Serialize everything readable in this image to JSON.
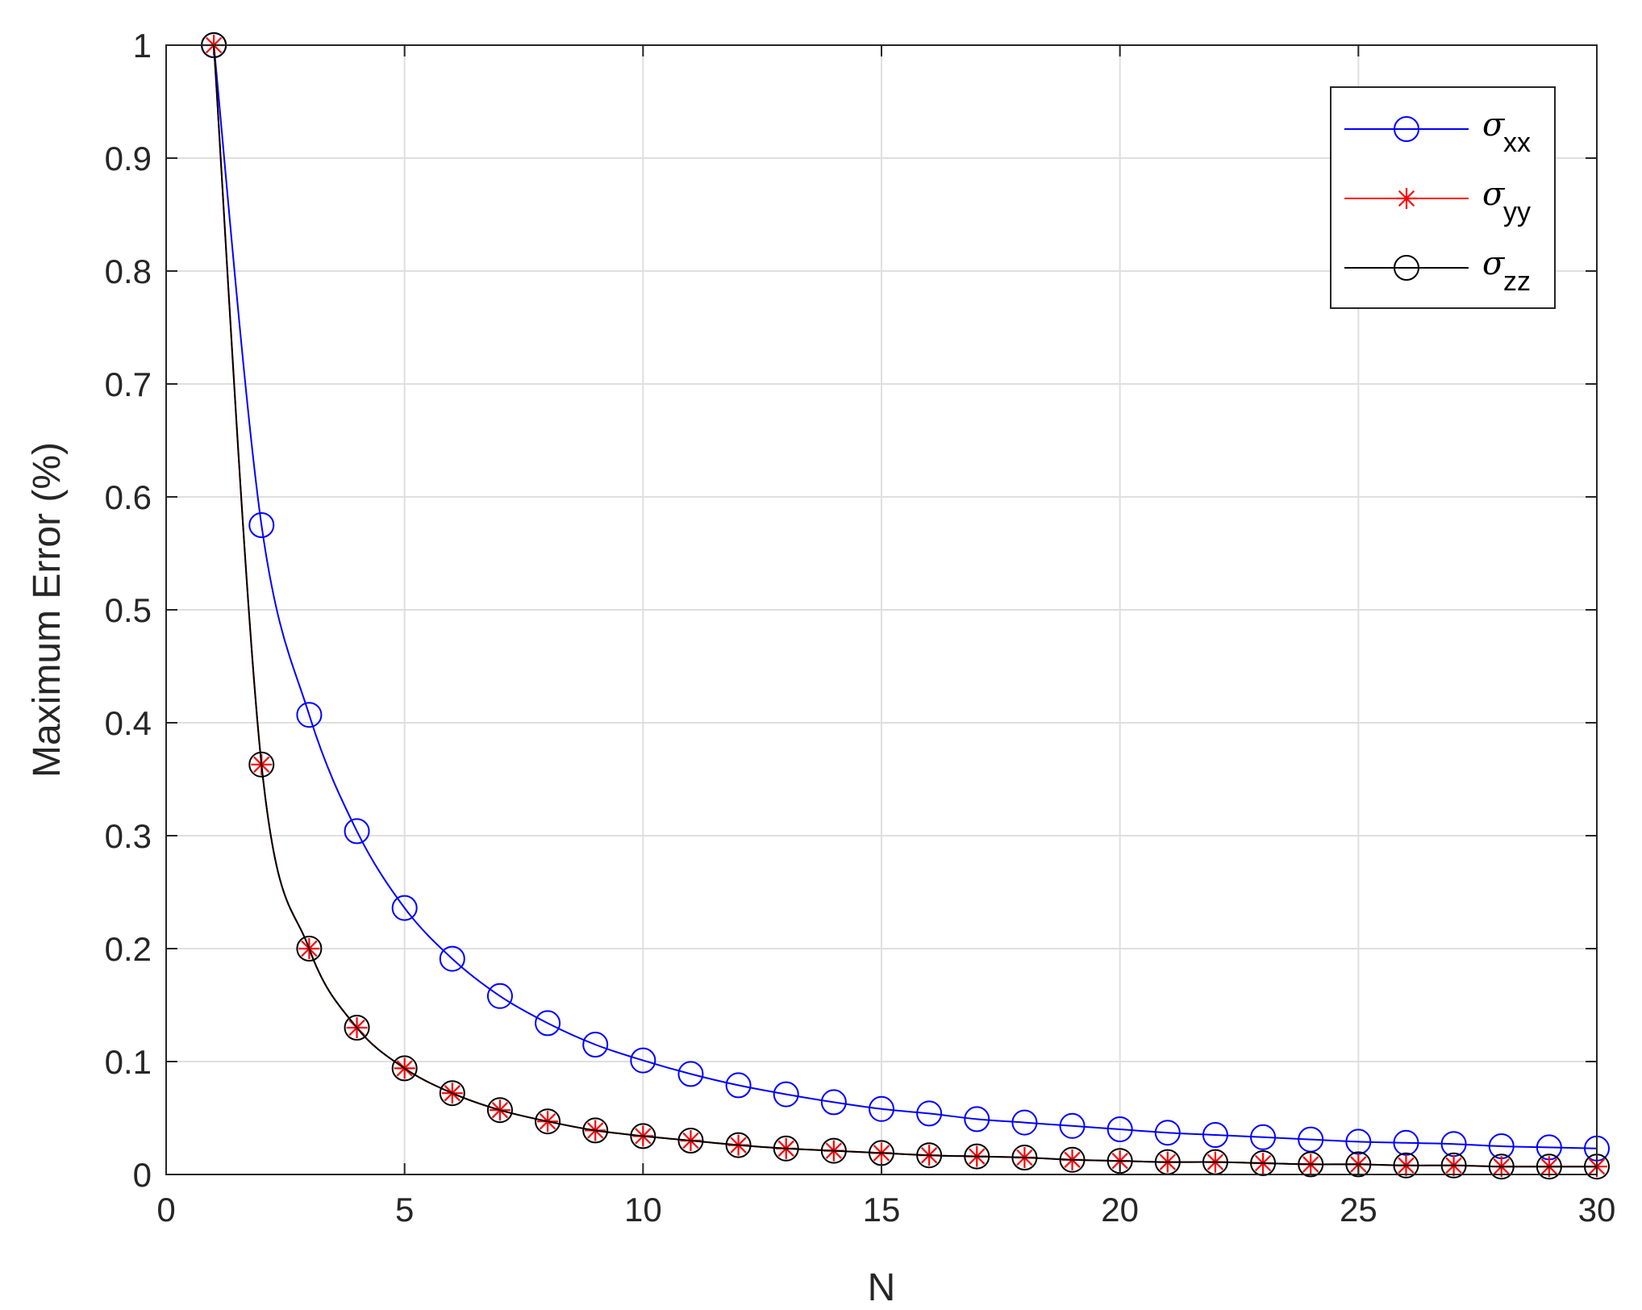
{
  "chart_data": {
    "type": "line",
    "xlabel": "N",
    "ylabel": "Maximum Error (%)",
    "xlim": [
      0,
      30
    ],
    "ylim": [
      0,
      1
    ],
    "xticks": [
      "0",
      "5",
      "10",
      "15",
      "20",
      "25",
      "30"
    ],
    "yticks": [
      "0",
      "0.1",
      "0.2",
      "0.3",
      "0.4",
      "0.5",
      "0.6",
      "0.7",
      "0.8",
      "0.9",
      "1"
    ],
    "grid": true,
    "legend_position": "top-right",
    "x": [
      1,
      2,
      3,
      4,
      5,
      6,
      7,
      8,
      9,
      10,
      11,
      12,
      13,
      14,
      15,
      16,
      17,
      18,
      19,
      20,
      21,
      22,
      23,
      24,
      25,
      26,
      27,
      28,
      29,
      30
    ],
    "series": [
      {
        "name": "σ",
        "subscript": "xx",
        "color": "#0000ff",
        "marker": "circle",
        "values": [
          1.0,
          0.575,
          0.407,
          0.304,
          0.236,
          0.191,
          0.158,
          0.134,
          0.115,
          0.101,
          0.089,
          0.079,
          0.071,
          0.064,
          0.058,
          0.054,
          0.049,
          0.046,
          0.043,
          0.04,
          0.037,
          0.035,
          0.033,
          0.031,
          0.029,
          0.028,
          0.027,
          0.025,
          0.024,
          0.023
        ]
      },
      {
        "name": "σ",
        "subscript": "yy",
        "color": "#ff0000",
        "marker": "asterisk",
        "values": [
          1.0,
          0.363,
          0.2,
          0.13,
          0.094,
          0.072,
          0.057,
          0.047,
          0.039,
          0.034,
          0.03,
          0.026,
          0.023,
          0.021,
          0.019,
          0.017,
          0.016,
          0.015,
          0.013,
          0.012,
          0.011,
          0.011,
          0.01,
          0.009,
          0.009,
          0.008,
          0.008,
          0.007,
          0.007,
          0.007
        ]
      },
      {
        "name": "σ",
        "subscript": "zz",
        "color": "#000000",
        "marker": "circle",
        "values": [
          1.0,
          0.363,
          0.2,
          0.13,
          0.094,
          0.072,
          0.057,
          0.047,
          0.039,
          0.034,
          0.03,
          0.026,
          0.023,
          0.021,
          0.019,
          0.017,
          0.016,
          0.015,
          0.013,
          0.012,
          0.011,
          0.011,
          0.01,
          0.009,
          0.009,
          0.008,
          0.008,
          0.007,
          0.007,
          0.007
        ]
      }
    ]
  }
}
